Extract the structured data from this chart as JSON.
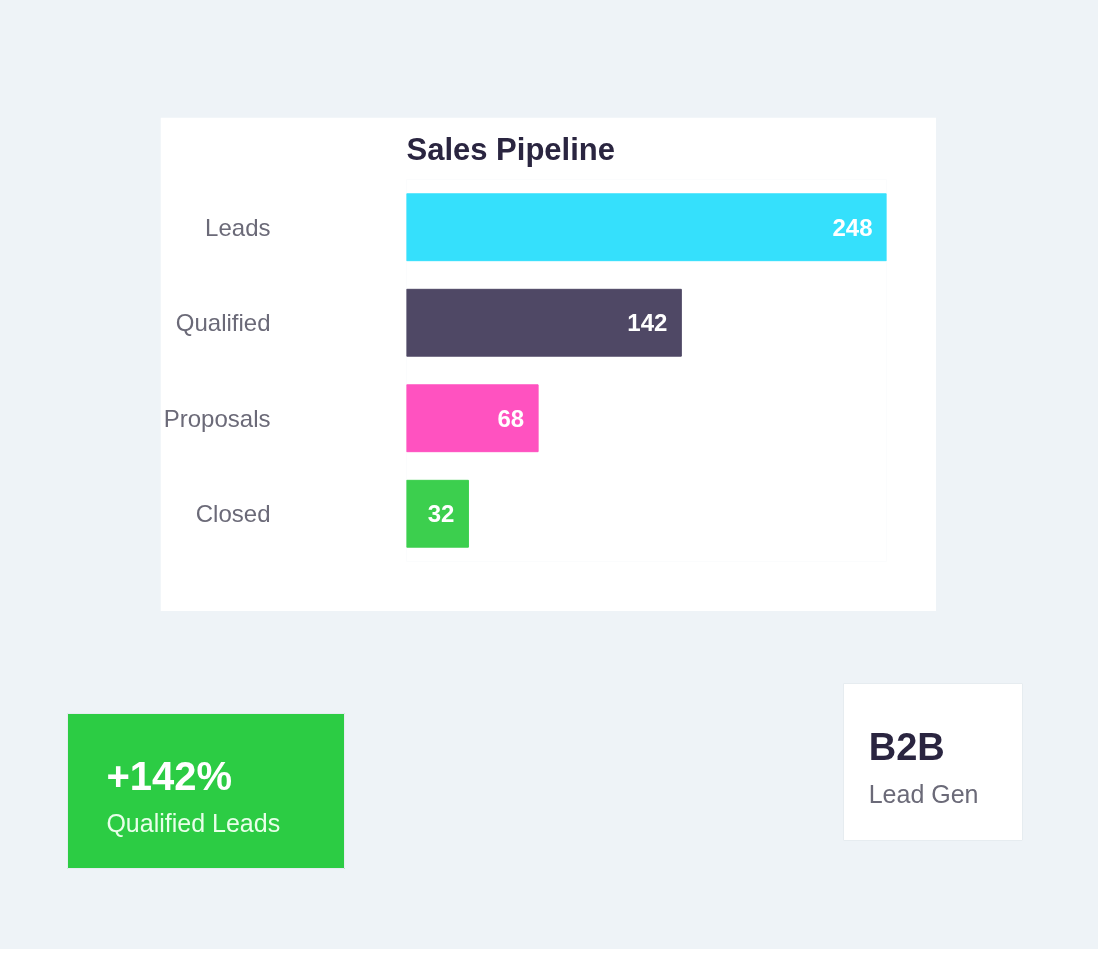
{
  "chart_data": [
    {
      "type": "bar",
      "orientation": "horizontal",
      "title": "Sales Pipeline",
      "categories": [
        "Leads",
        "Qualified",
        "Proposals",
        "Closed"
      ],
      "values": [
        248,
        142,
        68,
        32
      ],
      "colors": [
        "#35e0fc",
        "#4f4865",
        "#ff52c0",
        "#3ccf4e"
      ],
      "data_labels": true
    },
    {
      "type": "other",
      "title": "+142%",
      "subtitle": "Qualified Leads",
      "color": "#2ccc44"
    },
    {
      "type": "other",
      "title": "B2B",
      "subtitle": "Lead Gen",
      "color": "#ffffff"
    }
  ]
}
